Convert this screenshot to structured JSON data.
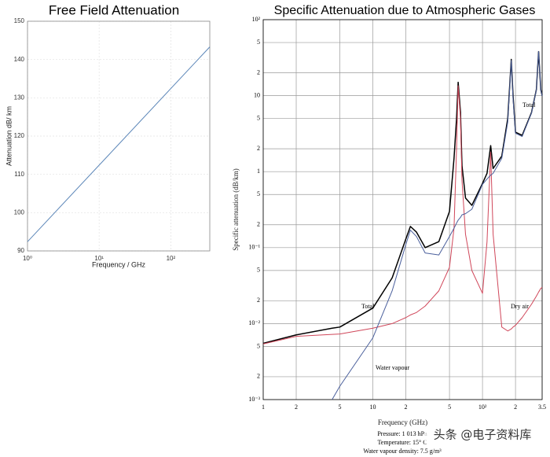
{
  "chart_data": [
    {
      "type": "line",
      "title": "Free Field Attenuation",
      "xlabel": "Frequency / GHz",
      "ylabel": "Attenuation dB/ km",
      "xscale": "log",
      "xlim": [
        1,
        350
      ],
      "ylim": [
        90,
        150
      ],
      "grid": true,
      "xticks": [
        {
          "value": 1,
          "label": "10⁰"
        },
        {
          "value": 10,
          "label": "10¹"
        },
        {
          "value": 100,
          "label": "10²"
        }
      ],
      "yticks": [
        90,
        100,
        110,
        120,
        130,
        140,
        150
      ],
      "x": [
        1,
        350
      ],
      "series": [
        {
          "name": null,
          "color": "#5b86b8",
          "values": [
            92.4,
            143.3
          ]
        }
      ]
    },
    {
      "type": "line",
      "title": "Specific Attenuation due to Atmospheric Gases",
      "xlabel": "Frequency (GHz)",
      "ylabel": "Specific attenuation (dB/km)",
      "xscale": "log",
      "yscale": "log",
      "xlim": [
        1,
        350
      ],
      "ylim": [
        0.001,
        100
      ],
      "grid": true,
      "xticks": [
        1,
        2,
        5,
        10,
        {
          "value": 20,
          "label": "2"
        },
        {
          "value": 50,
          "label": "5"
        },
        {
          "value": 100,
          "label": "10²"
        },
        {
          "value": 200,
          "label": "2"
        },
        {
          "value": 350,
          "label": "3.5"
        }
      ],
      "yticks": [
        {
          "value": 0.001,
          "label": "10⁻³"
        },
        {
          "value": 0.002,
          "label": "2"
        },
        {
          "value": 0.005,
          "label": "5"
        },
        {
          "value": 0.01,
          "label": "10⁻²"
        },
        {
          "value": 0.02,
          "label": "2"
        },
        {
          "value": 0.05,
          "label": "5"
        },
        {
          "value": 0.1,
          "label": "10⁻¹"
        },
        {
          "value": 0.2,
          "label": "2"
        },
        {
          "value": 0.5,
          "label": "5"
        },
        1,
        2,
        5,
        10,
        {
          "value": 20,
          "label": "2"
        },
        {
          "value": 50,
          "label": "5"
        },
        {
          "value": 100,
          "label": "10²"
        }
      ],
      "x": [
        1,
        2,
        4.25,
        5,
        10,
        15,
        20,
        22,
        25,
        30,
        40,
        50,
        55,
        58,
        60,
        63,
        65,
        70,
        80,
        100,
        110,
        118.75,
        125,
        150,
        170,
        183,
        190,
        200,
        230,
        280,
        310,
        325,
        340,
        350
      ],
      "series": [
        {
          "name": "Total",
          "color": "#000000",
          "values": [
            0.0055,
            0.0071,
            0.0087,
            0.009,
            0.016,
            0.04,
            0.13,
            0.19,
            0.16,
            0.1,
            0.12,
            0.3,
            1.5,
            5,
            15,
            6,
            1.2,
            0.45,
            0.36,
            0.7,
            0.95,
            2.2,
            1.1,
            1.6,
            5,
            30,
            10,
            3.3,
            3.0,
            6,
            12,
            38,
            12,
            10
          ]
        },
        {
          "name": "Dry air",
          "color": "#d0475a",
          "values": [
            0.0054,
            0.0068,
            0.0072,
            0.0073,
            0.0087,
            0.01,
            0.012,
            0.013,
            0.014,
            0.017,
            0.027,
            0.055,
            0.18,
            2,
            13.5,
            5,
            0.77,
            0.15,
            0.05,
            0.025,
            0.12,
            1.8,
            0.15,
            0.009,
            0.008,
            0.0085,
            0.009,
            0.0095,
            0.012,
            0.018,
            0.023,
            0.026,
            0.029,
            0.03
          ]
        },
        {
          "name": "Water vapour",
          "color": "#4a5f9c",
          "values": [
            null,
            null,
            0.001,
            0.0015,
            0.0065,
            0.027,
            0.11,
            0.17,
            0.14,
            0.085,
            0.08,
            0.14,
            0.18,
            0.21,
            0.23,
            0.25,
            0.27,
            0.28,
            0.32,
            0.68,
            0.8,
            0.9,
            0.95,
            1.5,
            4.5,
            29,
            9,
            3.2,
            2.9,
            5.9,
            11.9,
            38,
            11.9,
            9.9
          ]
        }
      ],
      "annotations": [
        "Total",
        "Total",
        "Dry air",
        "Water vapour"
      ],
      "notes": [
        "Pressure: 1 013 hPa",
        "Temperature: 15° C",
        "Water vapour density: 7.5 g/m³"
      ],
      "watermark": "头条 @电子资料库"
    }
  ]
}
